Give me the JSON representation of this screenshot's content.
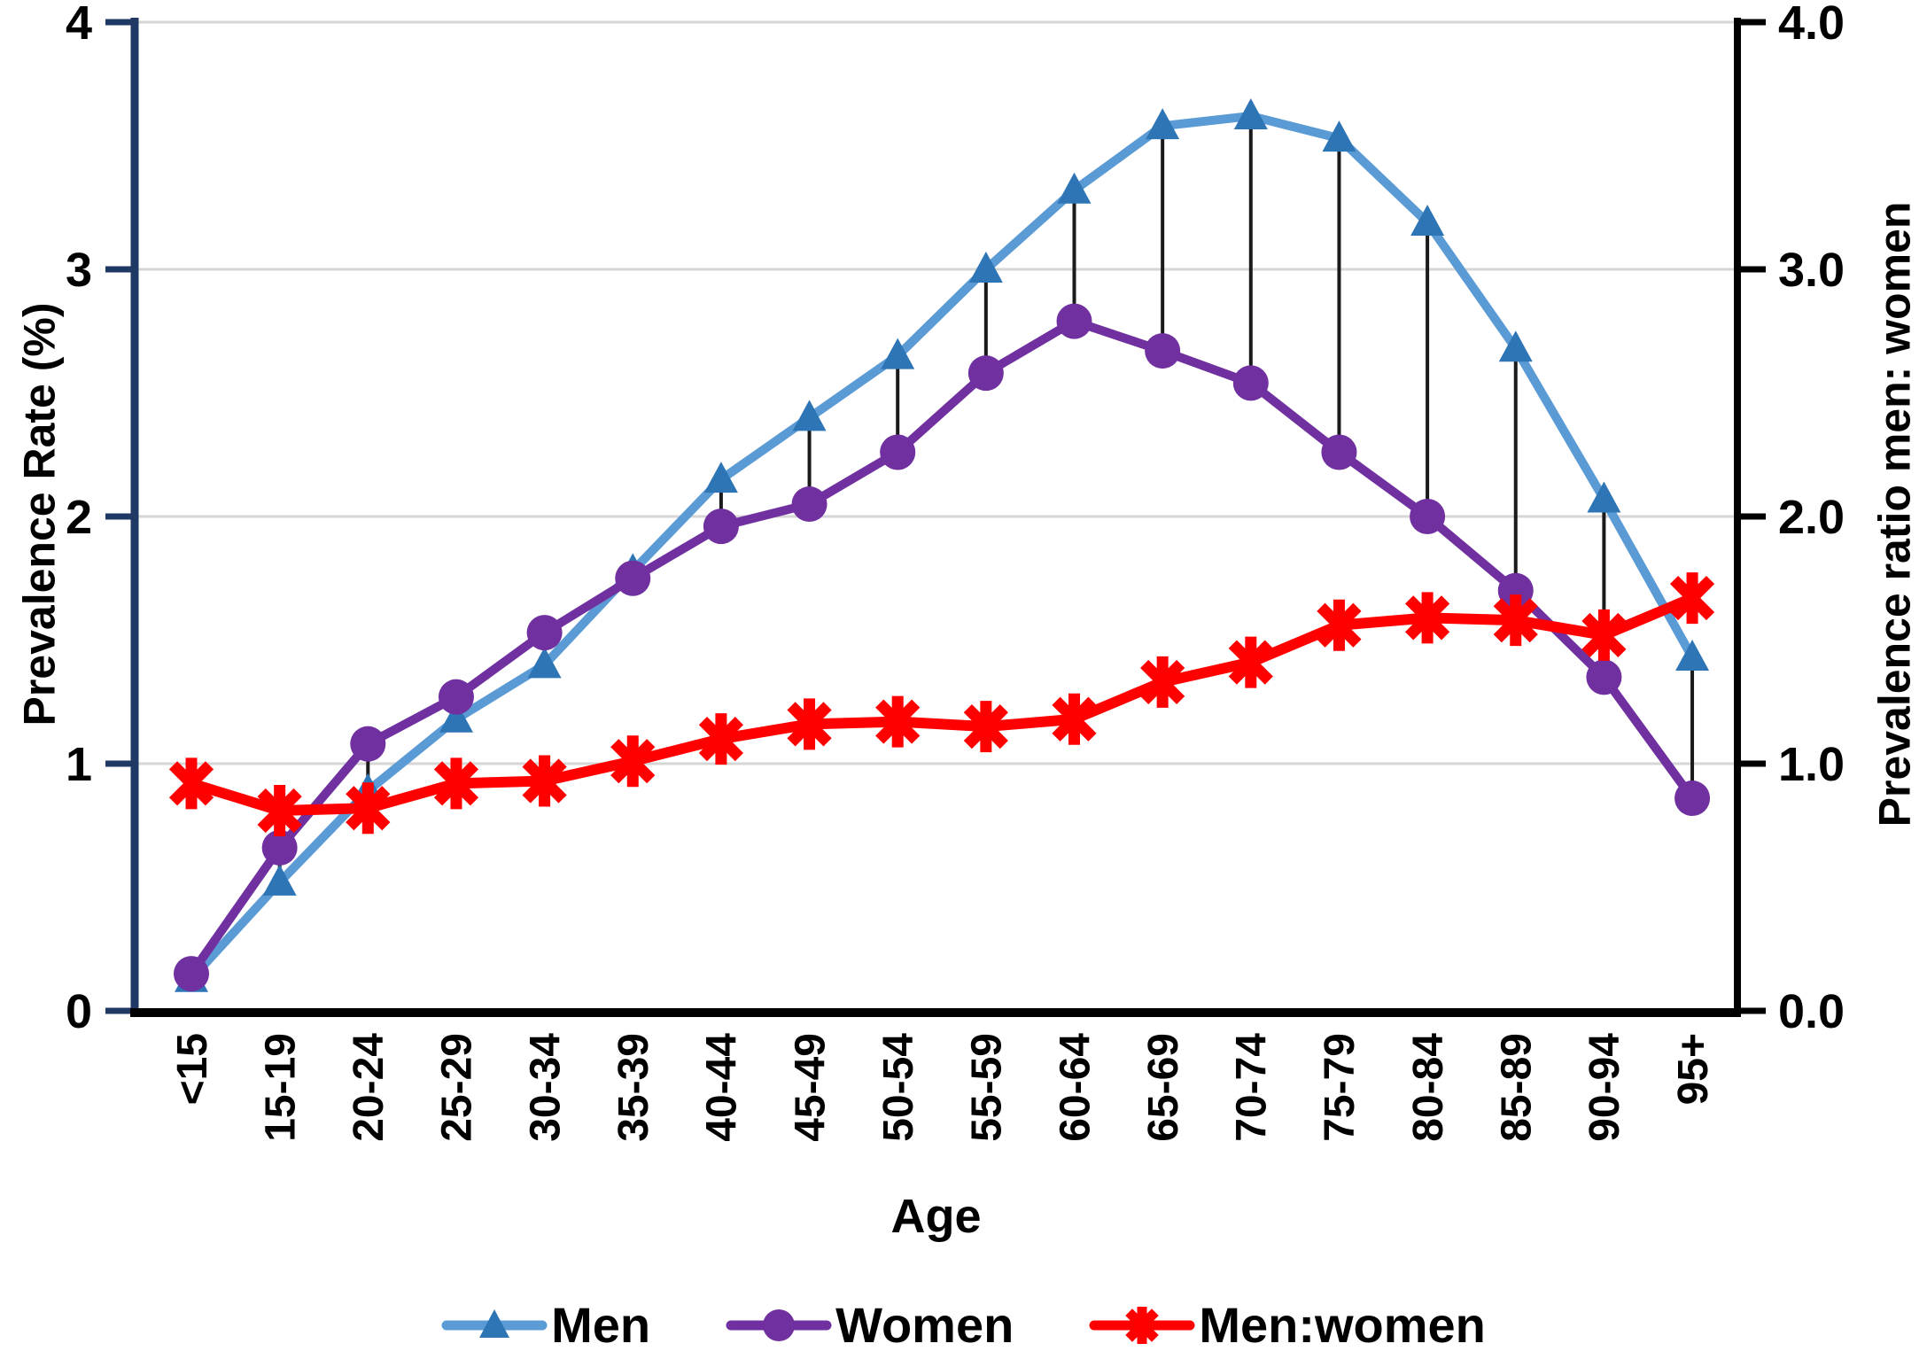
{
  "chart_data": {
    "type": "line",
    "title": "",
    "xlabel": "Age",
    "ylabel_left": "Prevalence Rate (%)",
    "ylabel_right": "Prevalence ratio men: women",
    "categories": [
      "<15",
      "15-19",
      "20-24",
      "25-29",
      "30-34",
      "35-39",
      "40-44",
      "45-49",
      "50-54",
      "55-59",
      "60-64",
      "65-69",
      "70-74",
      "75-79",
      "80-84",
      "85-89",
      "90-94",
      "95+"
    ],
    "series": [
      {
        "name": "Men",
        "axis": "left",
        "marker": "triangle",
        "color": "#5B9BD5",
        "marker_color": "#2E75B6",
        "values": [
          0.13,
          0.52,
          0.89,
          1.18,
          1.4,
          1.78,
          2.15,
          2.4,
          2.65,
          3.0,
          3.32,
          3.58,
          3.62,
          3.53,
          3.19,
          2.68,
          2.07,
          1.43
        ]
      },
      {
        "name": "Women",
        "axis": "left",
        "marker": "circle",
        "color": "#7030A0",
        "marker_color": "#7030A0",
        "values": [
          0.15,
          0.66,
          1.08,
          1.27,
          1.53,
          1.75,
          1.96,
          2.05,
          2.26,
          2.58,
          2.79,
          2.67,
          2.54,
          2.26,
          2.0,
          1.7,
          1.35,
          0.86
        ]
      },
      {
        "name": "Men:women",
        "axis": "right",
        "marker": "asterisk",
        "color": "#FF0000",
        "marker_color": "#FF0000",
        "values": [
          0.92,
          0.81,
          0.82,
          0.92,
          0.93,
          1.01,
          1.1,
          1.16,
          1.17,
          1.15,
          1.18,
          1.33,
          1.41,
          1.56,
          1.59,
          1.58,
          1.52,
          1.67
        ]
      }
    ],
    "y_left_ticks": [
      "0",
      "1",
      "2",
      "3",
      "4"
    ],
    "y_right_ticks": [
      "0.0",
      "1.0",
      "2.0",
      "3.0",
      "4.0"
    ],
    "ylim": [
      0,
      4
    ],
    "grid": "horizontal",
    "high_low_lines": true,
    "legend_position": "bottom",
    "colors": {
      "gridline": "#D6D6D6",
      "axis_left": "#1F3864",
      "axis_right": "#000000",
      "axis_bottom": "#000000",
      "dropline": "#1A1A1A",
      "text": "#000000"
    }
  }
}
